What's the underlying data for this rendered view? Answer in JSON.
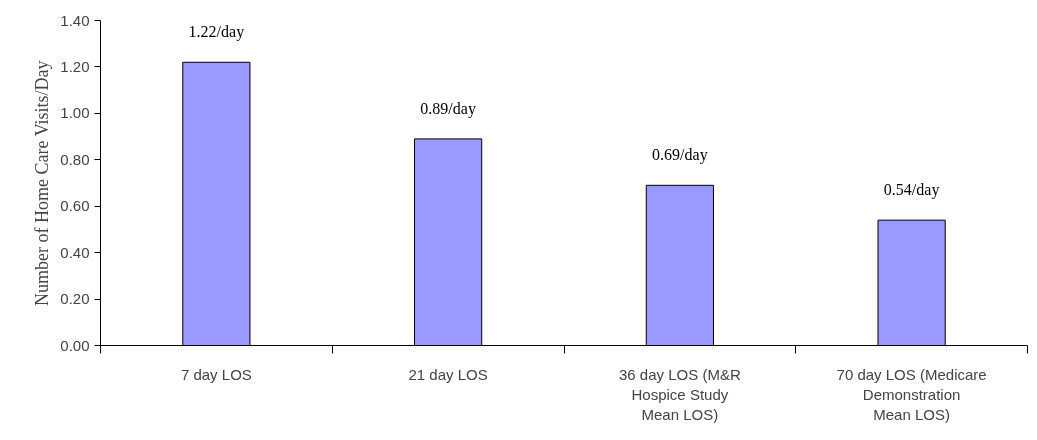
{
  "chart_data": {
    "type": "bar",
    "ylabel": "Number of Home Care Visits/Day",
    "categories": [
      "7 day LOS",
      "21 day LOS",
      "36 day LOS (M&R\nHospice Study\nMean LOS)",
      "70 day LOS (Medicare\nDemonstration\nMean LOS)"
    ],
    "values": [
      1.22,
      0.89,
      0.69,
      0.54
    ],
    "value_labels": [
      "1.22/day",
      "0.89/day",
      "0.69/day",
      "0.54/day"
    ],
    "color": "#9999ff",
    "ylim": [
      0,
      1.4
    ],
    "yticks": [
      {
        "value": 0,
        "label": "0.00"
      },
      {
        "value": 0.2,
        "label": "0.20"
      },
      {
        "value": 0.4,
        "label": "0.40"
      },
      {
        "value": 0.6,
        "label": "0.60"
      },
      {
        "value": 0.8,
        "label": "0.80"
      },
      {
        "value": 1.0,
        "label": "1.00"
      },
      {
        "value": 1.2,
        "label": "1.20"
      },
      {
        "value": 1.4,
        "label": "1.40"
      }
    ],
    "grid": false
  }
}
